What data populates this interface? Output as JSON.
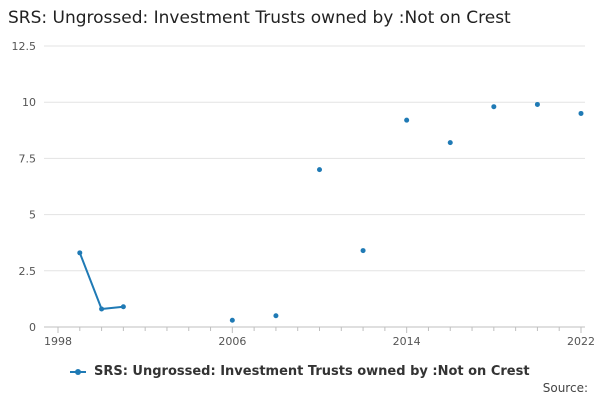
{
  "chart_data": {
    "type": "line",
    "title": "SRS: Ungrossed: Investment Trusts owned by :Not on Crest",
    "xlabel": "",
    "ylabel": "",
    "xlim": [
      1998,
      2022
    ],
    "ylim": [
      0,
      12.5
    ],
    "x_ticks": [
      1998,
      2006,
      2014,
      2022
    ],
    "y_ticks": [
      0,
      2.5,
      5,
      7.5,
      10,
      12.5
    ],
    "y_tick_labels": [
      "0",
      "2.5",
      "5",
      "7.5",
      "10",
      "12.5"
    ],
    "grid": "horizontal",
    "legend_position": "bottom",
    "series": [
      {
        "name": "SRS: Ungrossed: Investment Trusts owned by :Not on Crest",
        "color": "#1f7ab5",
        "points": [
          {
            "x": 1999,
            "y": 3.3
          },
          {
            "x": 2000,
            "y": 0.8
          },
          {
            "x": 2001,
            "y": 0.9
          },
          {
            "x": 2006,
            "y": 0.3
          },
          {
            "x": 2008,
            "y": 0.5
          },
          {
            "x": 2010,
            "y": 7.0
          },
          {
            "x": 2012,
            "y": 3.4
          },
          {
            "x": 2014,
            "y": 9.2
          },
          {
            "x": 2016,
            "y": 8.2
          },
          {
            "x": 2018,
            "y": 9.8
          },
          {
            "x": 2020,
            "y": 9.9
          },
          {
            "x": 2022,
            "y": 9.5
          }
        ]
      }
    ]
  },
  "footer": {
    "source_label": "Source:"
  }
}
